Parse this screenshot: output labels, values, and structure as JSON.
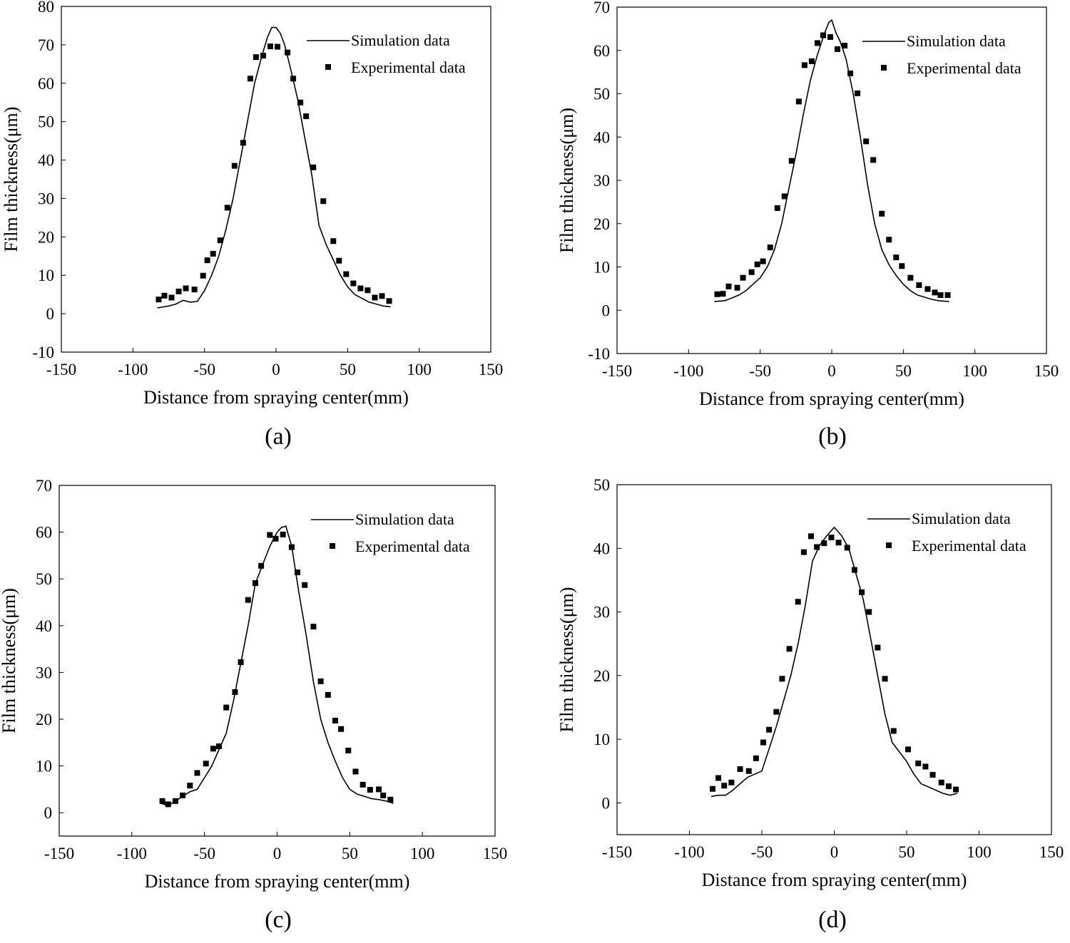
{
  "figure": {
    "panels": [
      "(a)",
      "(b)",
      "(c)",
      "(d)"
    ]
  },
  "chart_data": [
    {
      "type": "scatter",
      "panel_label": "(a)",
      "xlabel": "Distance from spraying center(mm)",
      "ylabel": "Film thickness(μm)",
      "xlim": [
        -150,
        150
      ],
      "ylim": [
        -10,
        80
      ],
      "xticks": [
        -150,
        -100,
        -50,
        0,
        50,
        100,
        150
      ],
      "yticks": [
        -10,
        0,
        10,
        20,
        30,
        40,
        50,
        60,
        70,
        80
      ],
      "legend": [
        "Simulation data",
        "Experimental data"
      ],
      "series": [
        {
          "name": "Simulation data",
          "kind": "line",
          "x": [
            -83,
            -75,
            -70,
            -65,
            -60,
            -55,
            -50,
            -45,
            -40,
            -35,
            -30,
            -25,
            -20,
            -15,
            -10,
            -6,
            -3,
            0,
            3,
            6,
            10,
            15,
            20,
            25,
            30,
            35,
            40,
            45,
            50,
            55,
            60,
            65,
            70,
            75,
            80
          ],
          "y": [
            1.5,
            2,
            2.5,
            3.5,
            3,
            3.2,
            6,
            10,
            15,
            22,
            30,
            40,
            50,
            60,
            67,
            72,
            74.5,
            74.5,
            73,
            70,
            64,
            56,
            46,
            36,
            23,
            18,
            14,
            10,
            7,
            5,
            4,
            3,
            2.5,
            2,
            1.8
          ]
        },
        {
          "name": "Experimental data",
          "kind": "scatter",
          "x": [
            -82,
            -78,
            -73,
            -68,
            -63,
            -57,
            -51,
            -48,
            -44,
            -39,
            -34,
            -29,
            -23,
            -18,
            -14,
            -9,
            -4,
            1,
            8,
            12,
            17,
            21,
            26,
            33,
            40,
            44,
            49,
            54,
            59,
            64,
            69,
            74,
            79
          ],
          "y": [
            3.7,
            4.7,
            4.2,
            5.8,
            6.6,
            6.3,
            9.9,
            13.9,
            15.6,
            19.1,
            27.6,
            38.5,
            44.5,
            61.2,
            66.8,
            67.2,
            69.6,
            69.5,
            68,
            61.2,
            55,
            51.4,
            38.1,
            29.3,
            18.9,
            13.8,
            10.3,
            7.9,
            6.6,
            6.1,
            4.2,
            4.6,
            3.3
          ]
        }
      ]
    },
    {
      "type": "scatter",
      "panel_label": "(b)",
      "xlabel": "Distance from spraying center(mm)",
      "ylabel": "Film thickness(μm)",
      "xlim": [
        -150,
        150
      ],
      "ylim": [
        -10,
        70
      ],
      "xticks": [
        -150,
        -100,
        -50,
        0,
        50,
        100,
        150
      ],
      "yticks": [
        -10,
        0,
        10,
        20,
        30,
        40,
        50,
        60,
        70
      ],
      "legend": [
        "Simulation data",
        "Experimental data"
      ],
      "series": [
        {
          "name": "Simulation data",
          "kind": "line",
          "x": [
            -82,
            -75,
            -70,
            -65,
            -60,
            -55,
            -50,
            -45,
            -40,
            -35,
            -30,
            -25,
            -20,
            -15,
            -10,
            -5,
            -2,
            0,
            3,
            6,
            10,
            15,
            20,
            25,
            30,
            35,
            40,
            45,
            50,
            55,
            60,
            65,
            70,
            75,
            82
          ],
          "y": [
            2,
            2.2,
            2.8,
            3.5,
            4.5,
            6,
            7.5,
            10,
            14,
            20,
            28,
            36,
            45,
            53,
            59,
            64,
            66.5,
            67,
            64,
            62,
            58,
            50,
            40,
            29,
            20,
            14,
            10.5,
            8,
            6,
            4.5,
            3.5,
            3,
            2.5,
            2.2,
            2
          ]
        },
        {
          "name": "Experimental data",
          "kind": "scatter",
          "x": [
            -80,
            -76,
            -72,
            -66,
            -62,
            -56,
            -52,
            -48,
            -43,
            -38,
            -33,
            -28,
            -23,
            -19,
            -14,
            -10,
            -6,
            -1,
            4,
            9,
            13,
            18,
            24,
            29,
            35,
            40,
            45,
            49,
            55,
            61,
            67,
            72,
            76,
            81
          ],
          "y": [
            3.7,
            3.8,
            5.5,
            5.2,
            7.5,
            8.8,
            10.6,
            11.3,
            14.5,
            23.6,
            26.3,
            34.5,
            48.2,
            56.6,
            57.5,
            61.7,
            63.5,
            63.1,
            60.3,
            61.1,
            54.7,
            50.1,
            39,
            34.7,
            22.3,
            16.3,
            12.2,
            10.2,
            7.5,
            5.8,
            4.9,
            4.1,
            3.5,
            3.5
          ]
        }
      ]
    },
    {
      "type": "scatter",
      "panel_label": "(c)",
      "xlabel": "Distance from spraying center(mm)",
      "ylabel": "Film thickness(μm)",
      "xlim": [
        -150,
        150
      ],
      "ylim": [
        -5,
        70
      ],
      "xticks": [
        -150,
        -100,
        -50,
        0,
        50,
        100,
        150
      ],
      "yticks": [
        0,
        10,
        20,
        30,
        40,
        50,
        60,
        70
      ],
      "legend": [
        "Simulation data",
        "Experimental data"
      ],
      "series": [
        {
          "name": "Simulation data",
          "kind": "line",
          "x": [
            -80,
            -75,
            -70,
            -65,
            -60,
            -55,
            -50,
            -45,
            -40,
            -35,
            -30,
            -25,
            -20,
            -15,
            -10,
            -5,
            0,
            3,
            6,
            10,
            15,
            20,
            25,
            30,
            35,
            40,
            45,
            50,
            55,
            60,
            65,
            70,
            75,
            80
          ],
          "y": [
            2,
            1.5,
            2.5,
            3.5,
            4.5,
            5,
            7.5,
            10,
            13.5,
            17,
            24,
            32,
            40,
            49,
            53,
            57,
            60,
            61,
            61.3,
            57,
            47,
            38,
            28,
            20,
            15,
            11,
            7.5,
            5,
            4,
            3.5,
            3,
            2.8,
            2.5,
            2
          ]
        },
        {
          "name": "Experimental data",
          "kind": "scatter",
          "x": [
            -79,
            -75,
            -70,
            -65,
            -60,
            -55,
            -49,
            -44,
            -40,
            -35,
            -29,
            -25,
            -20,
            -15,
            -11,
            -5,
            -1,
            4,
            10,
            14,
            19,
            25,
            30,
            35,
            40,
            44,
            49,
            54,
            59,
            64,
            70,
            73,
            78
          ],
          "y": [
            2.5,
            1.8,
            2.5,
            3.7,
            5.8,
            8.5,
            10.5,
            13.7,
            14.2,
            22.5,
            25.8,
            32.2,
            45.5,
            49.1,
            52.8,
            59.4,
            58.6,
            59.5,
            56.8,
            51.4,
            48.7,
            39.8,
            28.1,
            25.2,
            19.7,
            17.9,
            13.3,
            8.8,
            6,
            4.9,
            5,
            3.7,
            2.8
          ]
        }
      ]
    },
    {
      "type": "scatter",
      "panel_label": "(d)",
      "xlabel": "Distance from spraying center(mm)",
      "ylabel": "Film thickness(μm)",
      "xlim": [
        -150,
        150
      ],
      "ylim": [
        -5,
        50
      ],
      "xticks": [
        -150,
        -100,
        -50,
        0,
        50,
        100,
        150
      ],
      "yticks": [
        0,
        10,
        20,
        30,
        40,
        50
      ],
      "legend": [
        "Simulation data",
        "Experimental data"
      ],
      "series": [
        {
          "name": "Simulation data",
          "kind": "line",
          "x": [
            -85,
            -80,
            -75,
            -70,
            -65,
            -60,
            -55,
            -50,
            -45,
            -40,
            -35,
            -30,
            -25,
            -20,
            -15,
            -10,
            -5,
            0,
            5,
            10,
            15,
            20,
            25,
            30,
            35,
            40,
            45,
            50,
            55,
            60,
            65,
            70,
            75,
            80,
            85
          ],
          "y": [
            1,
            1.2,
            1.2,
            2,
            3,
            4,
            4.5,
            5,
            8.5,
            12,
            16,
            20,
            25,
            31,
            38,
            40.5,
            42,
            43.3,
            42,
            40,
            36,
            32,
            26,
            20,
            14,
            9.5,
            8,
            6.5,
            4.5,
            3,
            2.5,
            2,
            1.5,
            1.2,
            1.5
          ]
        },
        {
          "name": "Experimental data",
          "kind": "scatter",
          "x": [
            -84,
            -80,
            -76,
            -71,
            -65,
            -59,
            -54,
            -49,
            -45,
            -40,
            -36,
            -31,
            -25,
            -21,
            -16,
            -12,
            -7,
            -2,
            3,
            9,
            14,
            19,
            24,
            30,
            35,
            41,
            51,
            58,
            63,
            68,
            74,
            79,
            84
          ],
          "y": [
            2.2,
            3.9,
            2.7,
            3.2,
            5.3,
            5,
            7,
            9.5,
            11.5,
            14.3,
            19.5,
            24.2,
            31.6,
            39.4,
            41.9,
            40.2,
            40.8,
            41.7,
            40.9,
            40.1,
            36.6,
            33.1,
            30,
            24.4,
            19.5,
            11.3,
            8.4,
            6.2,
            5.7,
            4.4,
            3.2,
            2.6,
            2.1
          ]
        }
      ]
    }
  ]
}
